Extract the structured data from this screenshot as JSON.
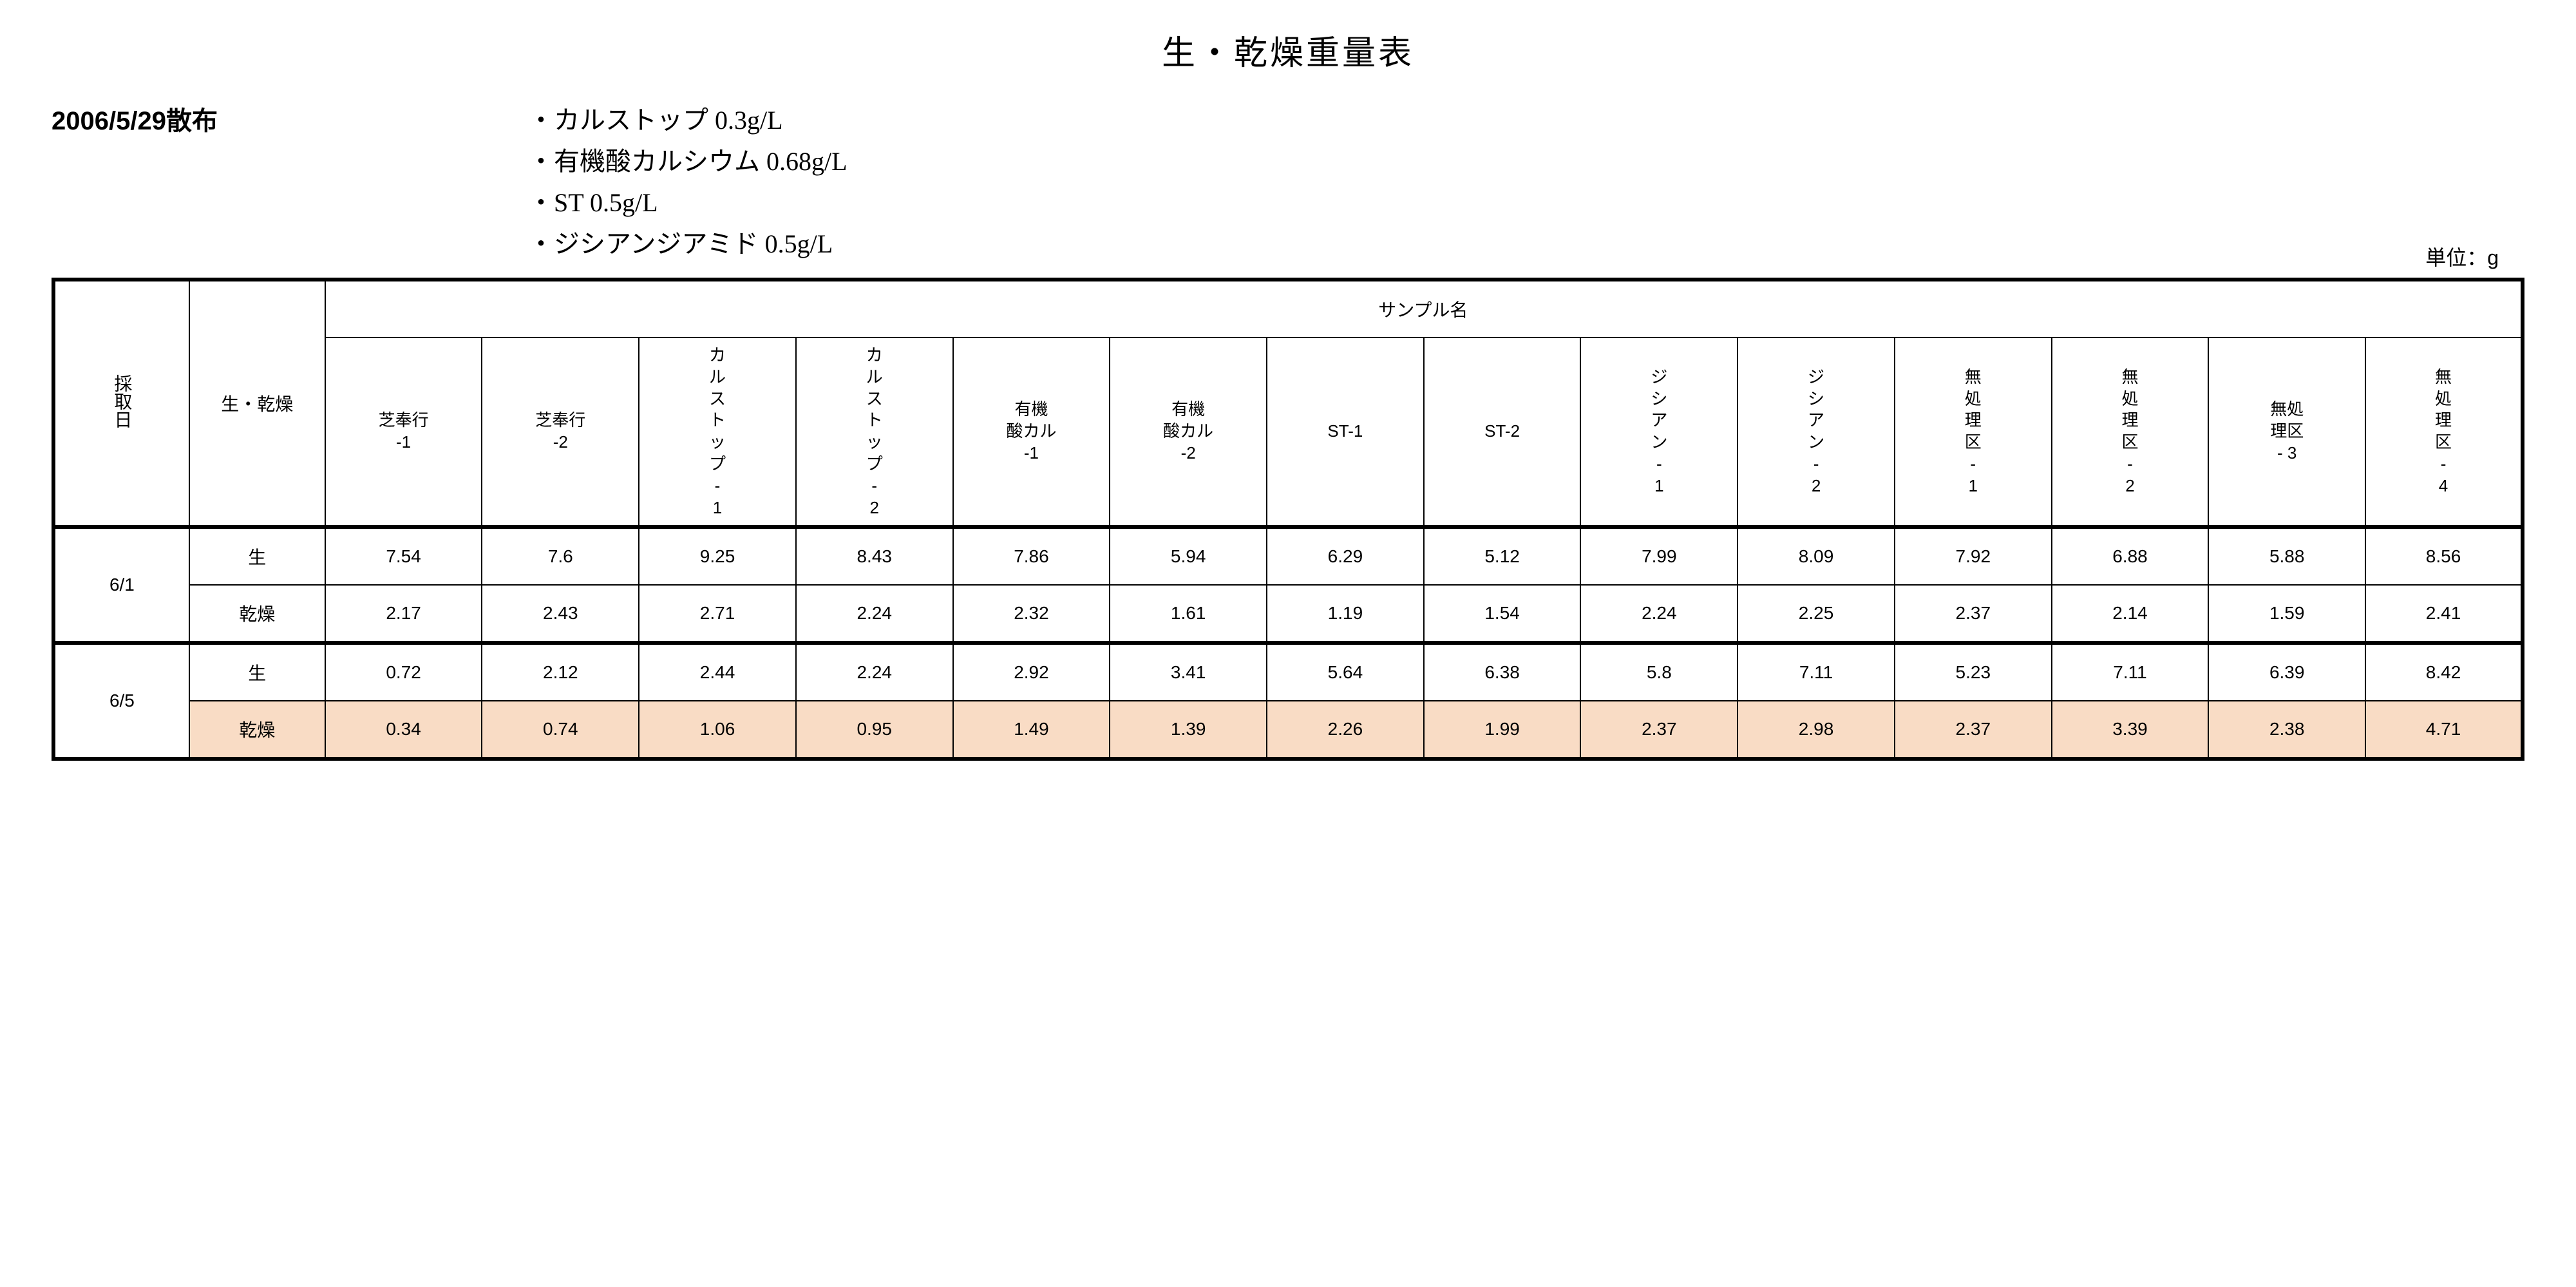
{
  "title": "生・乾燥重量表",
  "spray_date": "2006/5/29散布",
  "treatments": [
    "カルストップ 0.3g/L",
    "有機酸カルシウム 0.68g/L",
    "ST 0.5g/L",
    "ジシアンジアミド 0.5g/L"
  ],
  "unit_label": "単位：g",
  "headers": {
    "date_col": "採取日",
    "type_col": "生・乾燥",
    "sample_group": "サンプル名",
    "samples": [
      "芝奉行-1",
      "芝奉行-2",
      "カルストップ-1",
      "カルストップ-2",
      "有機酸カル-1",
      "有機酸カル-2",
      "ST-1",
      "ST-2",
      "ジシアン-1",
      "ジシアン-2",
      "無処理区-1",
      "無処理区-2",
      "無処理区- 3",
      "無処理区-4"
    ]
  },
  "type_labels": {
    "fresh": "生",
    "dry": "乾燥"
  },
  "rows": [
    {
      "date": "6/1",
      "fresh": [
        7.54,
        7.6,
        9.25,
        8.43,
        7.86,
        5.94,
        6.29,
        5.12,
        7.99,
        8.09,
        7.92,
        6.88,
        5.88,
        8.56
      ],
      "dry": [
        2.17,
        2.43,
        2.71,
        2.24,
        2.32,
        1.61,
        1.19,
        1.54,
        2.24,
        2.25,
        2.37,
        2.14,
        1.59,
        2.41
      ]
    },
    {
      "date": "6/5",
      "fresh": [
        0.72,
        2.12,
        2.44,
        2.24,
        2.92,
        3.41,
        5.64,
        6.38,
        5.8,
        7.11,
        5.23,
        7.11,
        6.39,
        8.42
      ],
      "dry": [
        0.34,
        0.74,
        1.06,
        0.95,
        1.49,
        1.39,
        2.26,
        1.99,
        2.37,
        2.98,
        2.37,
        3.39,
        2.38,
        4.71
      ],
      "dry_highlight": true
    }
  ],
  "style": {
    "highlight_color": "#f9dcc5",
    "background": "#ffffff",
    "border_color": "#000000",
    "title_fontsize": 52,
    "body_fontsize": 28,
    "header_fontsize": 26
  }
}
